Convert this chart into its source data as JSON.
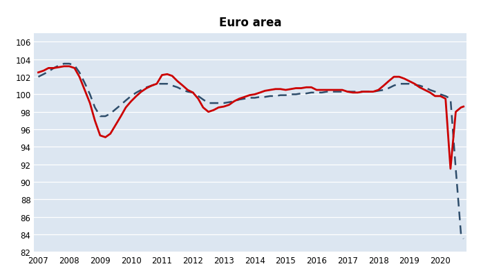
{
  "title": "Euro area",
  "background_color": "#dce6f1",
  "outer_background": "#ffffff",
  "red_line_color": "#cc0000",
  "blue_line_color": "#2e4d6b",
  "ylim": [
    82,
    107
  ],
  "yticks": [
    82,
    84,
    86,
    88,
    90,
    92,
    94,
    96,
    98,
    100,
    102,
    104,
    106
  ],
  "xlabel_years": [
    2007,
    2008,
    2009,
    2010,
    2011,
    2012,
    2013,
    2014,
    2015,
    2016,
    2017,
    2018,
    2019,
    2020
  ],
  "red_x": [
    2007.0,
    2007.17,
    2007.33,
    2007.5,
    2007.67,
    2007.83,
    2008.0,
    2008.17,
    2008.33,
    2008.5,
    2008.67,
    2008.83,
    2009.0,
    2009.17,
    2009.33,
    2009.5,
    2009.67,
    2009.83,
    2010.0,
    2010.17,
    2010.33,
    2010.5,
    2010.67,
    2010.83,
    2011.0,
    2011.17,
    2011.33,
    2011.5,
    2011.67,
    2011.83,
    2012.0,
    2012.17,
    2012.33,
    2012.5,
    2012.67,
    2012.83,
    2013.0,
    2013.17,
    2013.33,
    2013.5,
    2013.67,
    2013.83,
    2014.0,
    2014.17,
    2014.33,
    2014.5,
    2014.67,
    2014.83,
    2015.0,
    2015.17,
    2015.33,
    2015.5,
    2015.67,
    2015.83,
    2016.0,
    2016.17,
    2016.33,
    2016.5,
    2016.67,
    2016.83,
    2017.0,
    2017.17,
    2017.33,
    2017.5,
    2017.67,
    2017.83,
    2018.0,
    2018.17,
    2018.33,
    2018.5,
    2018.67,
    2018.83,
    2019.0,
    2019.17,
    2019.33,
    2019.5,
    2019.67,
    2019.83,
    2020.0,
    2020.17,
    2020.33,
    2020.5,
    2020.67,
    2020.75
  ],
  "red_y": [
    102.5,
    102.7,
    103.0,
    103.0,
    103.1,
    103.2,
    103.2,
    103.0,
    102.0,
    100.5,
    99.0,
    97.0,
    95.3,
    95.1,
    95.5,
    96.5,
    97.5,
    98.5,
    99.2,
    99.8,
    100.3,
    100.7,
    101.0,
    101.2,
    102.2,
    102.3,
    102.1,
    101.5,
    101.0,
    100.5,
    100.2,
    99.5,
    98.5,
    98.0,
    98.2,
    98.5,
    98.6,
    98.8,
    99.2,
    99.5,
    99.7,
    99.9,
    100.0,
    100.2,
    100.4,
    100.5,
    100.6,
    100.6,
    100.5,
    100.6,
    100.7,
    100.7,
    100.8,
    100.8,
    100.5,
    100.5,
    100.5,
    100.5,
    100.5,
    100.5,
    100.3,
    100.2,
    100.2,
    100.3,
    100.3,
    100.3,
    100.5,
    101.0,
    101.5,
    102.0,
    102.0,
    101.8,
    101.5,
    101.2,
    100.8,
    100.5,
    100.2,
    99.8,
    99.8,
    99.5,
    91.5,
    98.0,
    98.5,
    98.6
  ],
  "blue_x": [
    2007.0,
    2007.17,
    2007.33,
    2007.5,
    2007.67,
    2007.83,
    2008.0,
    2008.17,
    2008.33,
    2008.5,
    2008.67,
    2008.83,
    2009.0,
    2009.17,
    2009.33,
    2009.5,
    2009.67,
    2009.83,
    2010.0,
    2010.17,
    2010.33,
    2010.5,
    2010.67,
    2010.83,
    2011.0,
    2011.17,
    2011.33,
    2011.5,
    2011.67,
    2011.83,
    2012.0,
    2012.17,
    2012.33,
    2012.5,
    2012.67,
    2012.83,
    2013.0,
    2013.17,
    2013.33,
    2013.5,
    2013.67,
    2013.83,
    2014.0,
    2014.17,
    2014.33,
    2014.5,
    2014.67,
    2014.83,
    2015.0,
    2015.17,
    2015.33,
    2015.5,
    2015.67,
    2015.83,
    2016.0,
    2016.17,
    2016.33,
    2016.5,
    2016.67,
    2016.83,
    2017.0,
    2017.17,
    2017.33,
    2017.5,
    2017.67,
    2017.83,
    2018.0,
    2018.17,
    2018.33,
    2018.5,
    2018.67,
    2018.83,
    2019.0,
    2019.17,
    2019.33,
    2019.5,
    2019.67,
    2019.83,
    2020.0,
    2020.17,
    2020.33,
    2020.5,
    2020.67,
    2020.75
  ],
  "blue_y": [
    102.0,
    102.3,
    102.6,
    103.0,
    103.3,
    103.5,
    103.5,
    103.3,
    102.5,
    101.3,
    100.0,
    98.5,
    97.5,
    97.5,
    97.8,
    98.3,
    98.8,
    99.3,
    99.8,
    100.2,
    100.5,
    100.8,
    101.0,
    101.2,
    101.2,
    101.2,
    101.0,
    100.8,
    100.5,
    100.3,
    100.2,
    99.8,
    99.4,
    99.0,
    99.0,
    99.0,
    99.0,
    99.1,
    99.2,
    99.4,
    99.5,
    99.6,
    99.6,
    99.7,
    99.7,
    99.8,
    99.8,
    99.9,
    99.9,
    100.0,
    100.0,
    100.1,
    100.1,
    100.2,
    100.2,
    100.2,
    100.3,
    100.3,
    100.3,
    100.3,
    100.3,
    100.3,
    100.3,
    100.3,
    100.3,
    100.3,
    100.4,
    100.5,
    100.7,
    101.0,
    101.2,
    101.2,
    101.2,
    101.1,
    101.0,
    100.8,
    100.5,
    100.3,
    100.0,
    99.8,
    99.5,
    91.5,
    84.0,
    83.5
  ]
}
